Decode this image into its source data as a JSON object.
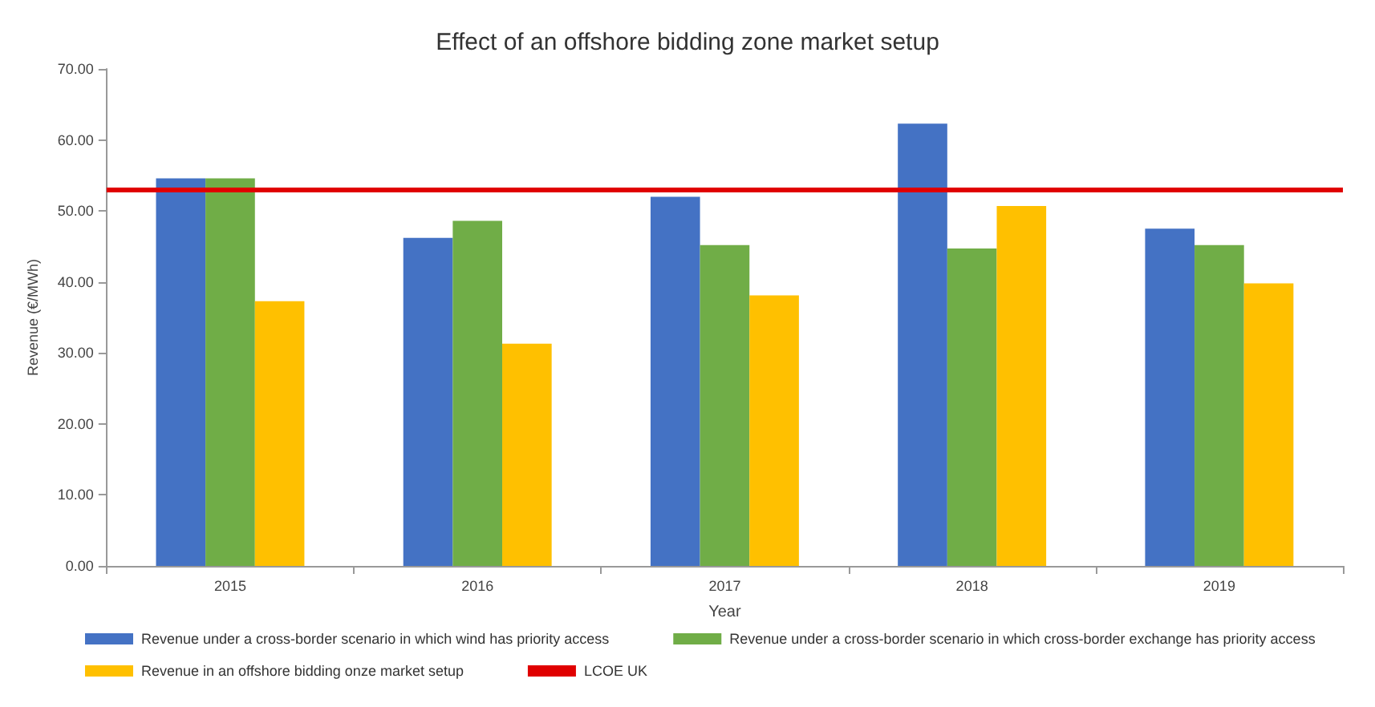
{
  "chart_data": {
    "type": "bar",
    "title": "Effect of an offshore bidding zone market setup",
    "xlabel": "Year",
    "ylabel": "Revenue (€/MWh)",
    "categories": [
      "2015",
      "2016",
      "2017",
      "2018",
      "2019"
    ],
    "series": [
      {
        "name": "Revenue under a cross-border scenario in which wind has priority access",
        "color": "#4472c4",
        "values": [
          54.6,
          46.2,
          52.0,
          62.3,
          47.5
        ]
      },
      {
        "name": "Revenue under a cross-border scenario in which cross-border exchange has priority access",
        "color": "#70ad47",
        "values": [
          54.6,
          48.6,
          45.2,
          44.7,
          45.2
        ]
      },
      {
        "name": "Revenue in an offshore bidding onze market setup",
        "color": "#ffc000",
        "values": [
          37.3,
          31.3,
          38.1,
          50.7,
          39.8
        ]
      }
    ],
    "ylim": [
      0,
      70
    ],
    "yticks": [
      {
        "value": 0,
        "label": "0.00"
      },
      {
        "value": 10,
        "label": "10.00"
      },
      {
        "value": 20,
        "label": "20.00"
      },
      {
        "value": 30,
        "label": "30.00"
      },
      {
        "value": 40,
        "label": "40.00"
      },
      {
        "value": 50,
        "label": "50.00"
      },
      {
        "value": 60,
        "label": "60.00"
      },
      {
        "value": 70,
        "label": "70.00"
      }
    ],
    "ref_lines": [
      {
        "axis": "y",
        "value": 53.1,
        "label": "LCOE UK",
        "color": "#e00000"
      }
    ],
    "grid": false,
    "legend": "bottom"
  }
}
